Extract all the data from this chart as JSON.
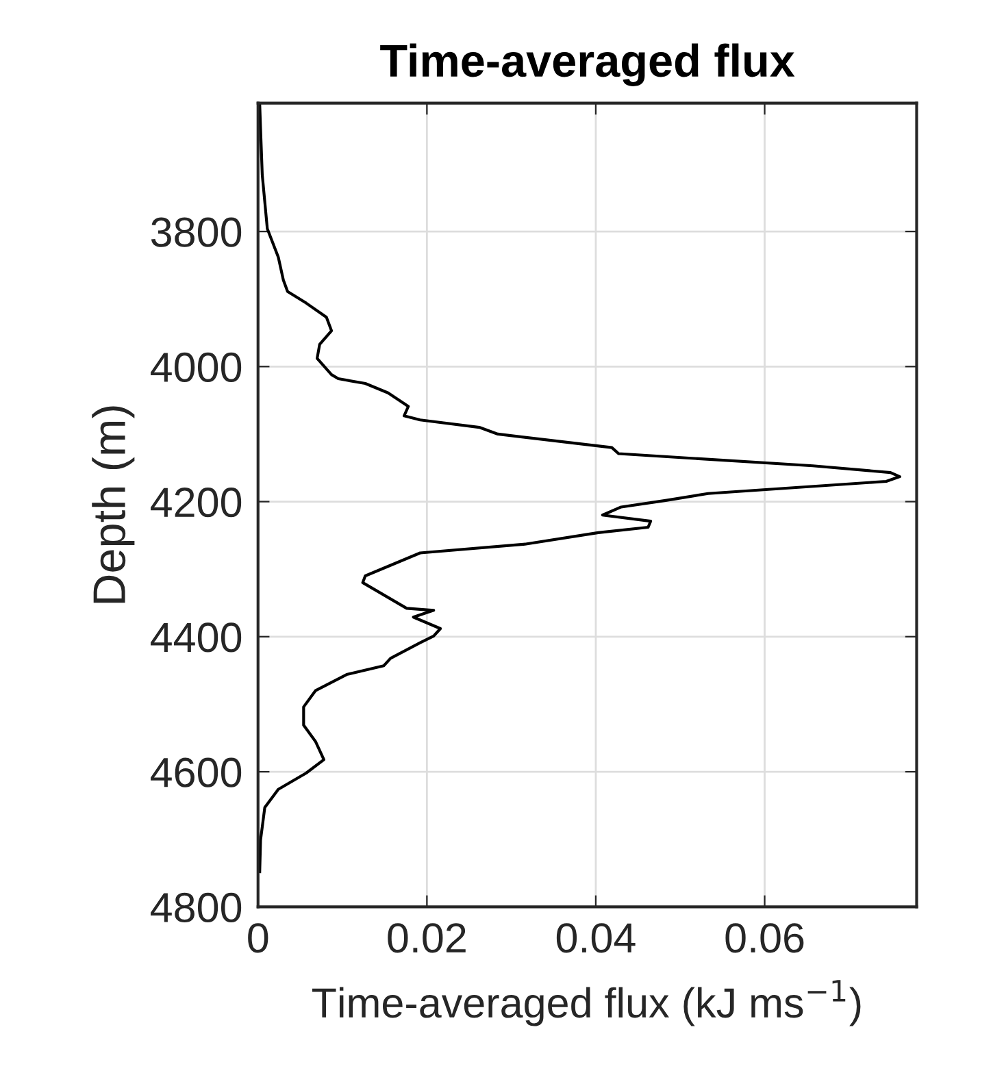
{
  "chart_data": {
    "type": "line",
    "title": "Time-averaged flux",
    "xlabel": "Time-averaged flux (kJ ms$^{−1}$)",
    "ylabel": "Depth (m)",
    "grid": true,
    "xlim": [
      0,
      0.078
    ],
    "xticks": [
      0,
      0.02,
      0.04,
      0.06
    ],
    "ylim": [
      4800,
      3610
    ],
    "yticks": [
      3800,
      4000,
      4200,
      4400,
      4600,
      4800
    ],
    "series": [
      {
        "color": "#000000",
        "values": [
          3612,
          3648,
          3716,
          3796,
          3838,
          3872,
          3889,
          3906,
          3927,
          3947,
          3967,
          3988,
          4012,
          4018,
          4025,
          4039,
          4059,
          4073,
          4079,
          4090,
          4100,
          4120,
          4129,
          4147,
          4157,
          4163,
          4170,
          4188,
          4198,
          4208,
          4220,
          4229,
          4238,
          4246,
          4263,
          4276,
          4310,
          4320,
          4358,
          4361,
          4371,
          4388,
          4399,
          4409,
          4432,
          4443,
          4456,
          4480,
          4504,
          4531,
          4555,
          4582,
          4602,
          4626,
          4653,
          4701,
          4748
        ],
        "x": [
          0.0002,
          0.0003,
          0.0005,
          0.0011,
          0.0024,
          0.003,
          0.0035,
          0.0057,
          0.0081,
          0.0087,
          0.0073,
          0.007,
          0.0087,
          0.0095,
          0.0127,
          0.0154,
          0.0178,
          0.0173,
          0.0192,
          0.0262,
          0.0284,
          0.0419,
          0.0427,
          0.0657,
          0.0749,
          0.076,
          0.0744,
          0.0533,
          0.0484,
          0.043,
          0.0408,
          0.0465,
          0.0462,
          0.0403,
          0.0316,
          0.0192,
          0.0127,
          0.0124,
          0.0176,
          0.0208,
          0.0184,
          0.0216,
          0.0208,
          0.0192,
          0.0157,
          0.0149,
          0.0105,
          0.0068,
          0.0054,
          0.0054,
          0.0068,
          0.0078,
          0.0057,
          0.0024,
          0.0008,
          0.0003,
          0.0002
        ]
      }
    ]
  }
}
